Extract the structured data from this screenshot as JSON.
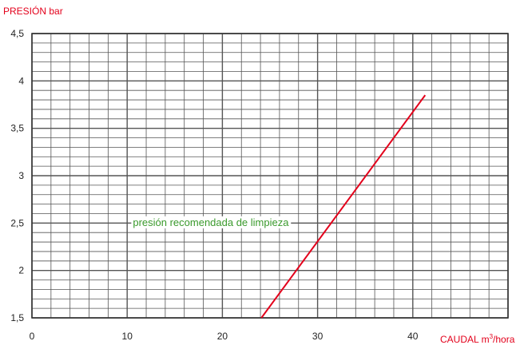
{
  "chart_data": {
    "type": "line",
    "ylabel": "PRESIÓN bar",
    "xlabel_prefix": "CAUDAL m",
    "xlabel_sup": "3",
    "xlabel_suffix": "/hora",
    "xlim": [
      0,
      50
    ],
    "ylim": [
      1.5,
      4.5
    ],
    "x_ticks": [
      0,
      10,
      20,
      30,
      40
    ],
    "x_tick_labels": [
      "0",
      "10",
      "20",
      "30",
      "40"
    ],
    "y_ticks": [
      1.5,
      2,
      2.5,
      3,
      3.5,
      4,
      4.5
    ],
    "y_tick_labels": [
      "1,5",
      "2",
      "2,5",
      "3",
      "3,5",
      "4",
      "4,5"
    ],
    "grid": true,
    "minor_x_step": 2,
    "minor_y_step": 0.1,
    "series": [
      {
        "x": [
          24.1,
          41.3
        ],
        "y": [
          1.5,
          3.85
        ],
        "color": "#e3001b"
      }
    ],
    "annotation": {
      "text": "presión recomendada de limpieza",
      "x": 10.6,
      "y": 2.47,
      "color": "#3a9a2c"
    }
  }
}
